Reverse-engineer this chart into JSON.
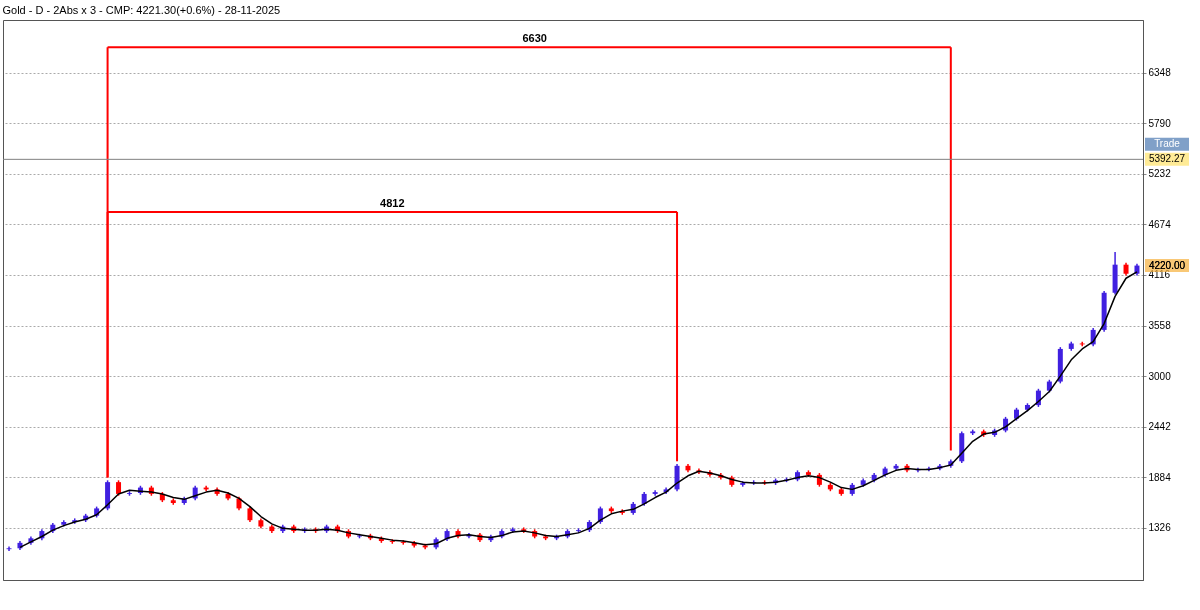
{
  "chart_data": {
    "type": "candlestick",
    "title": "Gold  - D - 2Abs x 3 - CMP: 4221.30(+0.6%) - 28-11-2025",
    "categories": [
      null,
      null,
      null,
      null,
      null,
      null,
      null,
      null,
      null,
      null,
      null,
      null,
      null,
      null,
      null,
      null,
      null,
      null,
      null,
      null,
      null,
      null,
      null,
      null,
      null,
      null,
      null,
      null,
      null,
      null,
      null,
      null,
      null,
      null,
      null,
      null,
      null,
      null,
      null,
      null,
      null,
      null,
      null,
      null,
      null,
      null,
      null,
      null,
      null,
      null,
      null,
      null,
      null,
      null,
      null,
      null,
      null,
      null,
      null,
      null,
      null,
      null,
      null,
      null,
      null,
      null,
      null,
      null,
      null,
      null,
      null,
      null,
      null,
      null,
      null,
      null,
      null,
      null,
      null,
      null,
      null,
      null,
      null,
      null,
      null,
      null,
      null,
      null,
      null,
      null,
      null,
      null,
      null,
      null,
      null,
      null,
      null,
      null,
      null,
      null,
      null,
      null,
      null,
      null
    ],
    "ohlc": [
      [
        1090,
        1120,
        1070,
        1100
      ],
      [
        1100,
        1180,
        1080,
        1160
      ],
      [
        1160,
        1230,
        1140,
        1210
      ],
      [
        1210,
        1310,
        1190,
        1290
      ],
      [
        1290,
        1380,
        1270,
        1360
      ],
      [
        1360,
        1410,
        1340,
        1390
      ],
      [
        1390,
        1430,
        1370,
        1410
      ],
      [
        1410,
        1480,
        1390,
        1460
      ],
      [
        1460,
        1560,
        1440,
        1540
      ],
      [
        1540,
        1850,
        1520,
        1830
      ],
      [
        1830,
        1850,
        1680,
        1700
      ],
      [
        1700,
        1730,
        1680,
        1710
      ],
      [
        1710,
        1790,
        1690,
        1770
      ],
      [
        1770,
        1790,
        1680,
        1700
      ],
      [
        1700,
        1720,
        1610,
        1630
      ],
      [
        1630,
        1650,
        1580,
        1600
      ],
      [
        1600,
        1670,
        1580,
        1650
      ],
      [
        1650,
        1790,
        1630,
        1770
      ],
      [
        1770,
        1790,
        1730,
        1750
      ],
      [
        1750,
        1770,
        1680,
        1700
      ],
      [
        1700,
        1720,
        1630,
        1650
      ],
      [
        1650,
        1670,
        1520,
        1540
      ],
      [
        1540,
        1560,
        1390,
        1410
      ],
      [
        1410,
        1430,
        1320,
        1340
      ],
      [
        1340,
        1360,
        1270,
        1290
      ],
      [
        1290,
        1360,
        1270,
        1340
      ],
      [
        1340,
        1360,
        1270,
        1290
      ],
      [
        1290,
        1330,
        1270,
        1310
      ],
      [
        1310,
        1330,
        1270,
        1290
      ],
      [
        1290,
        1360,
        1270,
        1340
      ],
      [
        1340,
        1360,
        1270,
        1290
      ],
      [
        1290,
        1310,
        1210,
        1230
      ],
      [
        1230,
        1260,
        1210,
        1240
      ],
      [
        1240,
        1260,
        1190,
        1210
      ],
      [
        1210,
        1230,
        1160,
        1180
      ],
      [
        1180,
        1200,
        1150,
        1170
      ],
      [
        1170,
        1190,
        1140,
        1160
      ],
      [
        1160,
        1180,
        1110,
        1130
      ],
      [
        1130,
        1150,
        1090,
        1110
      ],
      [
        1110,
        1220,
        1090,
        1200
      ],
      [
        1200,
        1310,
        1180,
        1290
      ],
      [
        1290,
        1310,
        1210,
        1230
      ],
      [
        1230,
        1270,
        1210,
        1250
      ],
      [
        1250,
        1270,
        1170,
        1190
      ],
      [
        1190,
        1250,
        1170,
        1230
      ],
      [
        1230,
        1310,
        1210,
        1290
      ],
      [
        1290,
        1330,
        1270,
        1310
      ],
      [
        1310,
        1330,
        1270,
        1290
      ],
      [
        1290,
        1310,
        1210,
        1230
      ],
      [
        1230,
        1250,
        1190,
        1210
      ],
      [
        1210,
        1250,
        1190,
        1230
      ],
      [
        1230,
        1310,
        1210,
        1290
      ],
      [
        1290,
        1320,
        1270,
        1300
      ],
      [
        1300,
        1410,
        1280,
        1390
      ],
      [
        1390,
        1560,
        1370,
        1540
      ],
      [
        1540,
        1560,
        1490,
        1510
      ],
      [
        1510,
        1530,
        1470,
        1490
      ],
      [
        1490,
        1610,
        1470,
        1590
      ],
      [
        1590,
        1720,
        1570,
        1700
      ],
      [
        1700,
        1740,
        1680,
        1720
      ],
      [
        1720,
        1770,
        1700,
        1750
      ],
      [
        1750,
        2030,
        1730,
        2010
      ],
      [
        2010,
        2030,
        1940,
        1960
      ],
      [
        1960,
        1980,
        1920,
        1940
      ],
      [
        1940,
        1960,
        1890,
        1910
      ],
      [
        1910,
        1930,
        1860,
        1880
      ],
      [
        1880,
        1900,
        1780,
        1800
      ],
      [
        1800,
        1840,
        1780,
        1820
      ],
      [
        1820,
        1850,
        1800,
        1830
      ],
      [
        1830,
        1850,
        1800,
        1820
      ],
      [
        1820,
        1870,
        1800,
        1850
      ],
      [
        1850,
        1880,
        1830,
        1860
      ],
      [
        1860,
        1960,
        1840,
        1940
      ],
      [
        1940,
        1960,
        1890,
        1910
      ],
      [
        1910,
        1930,
        1780,
        1800
      ],
      [
        1800,
        1820,
        1730,
        1750
      ],
      [
        1750,
        1770,
        1680,
        1700
      ],
      [
        1700,
        1820,
        1680,
        1800
      ],
      [
        1800,
        1870,
        1780,
        1850
      ],
      [
        1850,
        1930,
        1830,
        1910
      ],
      [
        1910,
        2000,
        1890,
        1980
      ],
      [
        1980,
        2030,
        1960,
        2010
      ],
      [
        2010,
        2030,
        1940,
        1960
      ],
      [
        1960,
        1990,
        1940,
        1970
      ],
      [
        1970,
        2000,
        1950,
        1980
      ],
      [
        1980,
        2030,
        1960,
        2010
      ],
      [
        2010,
        2080,
        1990,
        2060
      ],
      [
        2060,
        2390,
        2040,
        2370
      ],
      [
        2370,
        2410,
        2350,
        2390
      ],
      [
        2390,
        2410,
        2330,
        2350
      ],
      [
        2350,
        2420,
        2330,
        2400
      ],
      [
        2400,
        2550,
        2380,
        2530
      ],
      [
        2530,
        2650,
        2510,
        2630
      ],
      [
        2630,
        2700,
        2610,
        2680
      ],
      [
        2680,
        2860,
        2660,
        2840
      ],
      [
        2840,
        2960,
        2820,
        2940
      ],
      [
        2940,
        3320,
        2920,
        3300
      ],
      [
        3300,
        3380,
        3280,
        3360
      ],
      [
        3360,
        3380,
        3330,
        3350
      ],
      [
        3350,
        3530,
        3330,
        3510
      ],
      [
        3510,
        3940,
        3490,
        3920
      ],
      [
        3920,
        4370,
        3900,
        4230
      ],
      [
        4230,
        4250,
        4110,
        4130
      ],
      [
        4130,
        4240,
        4110,
        4220
      ]
    ],
    "colors": [
      "#4020e0",
      "#4020e0",
      "#4020e0",
      "#4020e0",
      "#4020e0",
      "#4020e0",
      "#4020e0",
      "#4020e0",
      "#4020e0",
      "#4020e0",
      "#ff0000",
      "#4020e0",
      "#4020e0",
      "#ff0000",
      "#ff0000",
      "#ff0000",
      "#4020e0",
      "#4020e0",
      "#ff0000",
      "#ff0000",
      "#ff0000",
      "#ff0000",
      "#ff0000",
      "#ff0000",
      "#ff0000",
      "#4020e0",
      "#ff0000",
      "#4020e0",
      "#ff0000",
      "#4020e0",
      "#ff0000",
      "#ff0000",
      "#4020e0",
      "#ff0000",
      "#ff0000",
      "#ff0000",
      "#ff0000",
      "#ff0000",
      "#ff0000",
      "#4020e0",
      "#4020e0",
      "#ff0000",
      "#4020e0",
      "#ff0000",
      "#4020e0",
      "#4020e0",
      "#4020e0",
      "#ff0000",
      "#ff0000",
      "#ff0000",
      "#4020e0",
      "#4020e0",
      "#4020e0",
      "#4020e0",
      "#4020e0",
      "#ff0000",
      "#ff0000",
      "#4020e0",
      "#4020e0",
      "#4020e0",
      "#4020e0",
      "#4020e0",
      "#ff0000",
      "#ff0000",
      "#ff0000",
      "#ff0000",
      "#ff0000",
      "#4020e0",
      "#4020e0",
      "#ff0000",
      "#4020e0",
      "#4020e0",
      "#4020e0",
      "#ff0000",
      "#ff0000",
      "#ff0000",
      "#ff0000",
      "#4020e0",
      "#4020e0",
      "#4020e0",
      "#4020e0",
      "#4020e0",
      "#ff0000",
      "#4020e0",
      "#4020e0",
      "#4020e0",
      "#4020e0",
      "#4020e0",
      "#4020e0",
      "#ff0000",
      "#4020e0",
      "#4020e0",
      "#4020e0",
      "#4020e0",
      "#4020e0",
      "#4020e0",
      "#4020e0",
      "#4020e0",
      "#ff0000",
      "#4020e0",
      "#4020e0",
      "#4020e0",
      "#ff0000",
      "#4020e0"
    ],
    "series": [
      {
        "type": "line",
        "color": "#000000",
        "values": [
          null,
          1110,
          1170,
          1230,
          1300,
          1350,
          1390,
          1420,
          1470,
          1580,
          1700,
          1740,
          1730,
          1720,
          1700,
          1660,
          1640,
          1680,
          1720,
          1740,
          1710,
          1650,
          1560,
          1450,
          1370,
          1320,
          1310,
          1300,
          1300,
          1310,
          1300,
          1270,
          1250,
          1230,
          1210,
          1190,
          1180,
          1160,
          1140,
          1150,
          1210,
          1240,
          1250,
          1230,
          1220,
          1240,
          1280,
          1290,
          1270,
          1240,
          1230,
          1250,
          1270,
          1320,
          1410,
          1480,
          1510,
          1530,
          1590,
          1660,
          1720,
          1820,
          1900,
          1950,
          1930,
          1900,
          1860,
          1830,
          1820,
          1820,
          1830,
          1850,
          1880,
          1900,
          1880,
          1830,
          1770,
          1750,
          1790,
          1850,
          1910,
          1960,
          1980,
          1970,
          1970,
          1990,
          2020,
          2150,
          2280,
          2360,
          2380,
          2440,
          2530,
          2620,
          2720,
          2830,
          3000,
          3180,
          3300,
          3380,
          3580,
          3880,
          4080,
          4150
        ]
      },
      {
        "type": "line",
        "name": "4812",
        "color": "#ff0000",
        "errors": [
          null,
          null,
          null,
          null,
          null,
          null,
          null,
          null,
          null,
          [
            1880,
            4812
          ],
          null,
          null,
          null,
          null,
          null,
          null,
          null,
          null,
          null,
          null,
          null,
          null,
          null,
          null,
          null,
          null,
          null,
          null,
          null,
          null,
          null,
          null,
          null,
          null,
          null,
          null,
          null,
          null,
          null,
          null,
          null,
          null,
          null,
          null,
          null,
          null,
          null,
          null,
          null,
          null,
          null,
          null,
          null,
          null,
          null,
          null,
          null,
          null,
          null,
          null,
          null,
          [
            2060,
            4812
          ],
          null,
          null,
          null,
          null,
          null,
          null,
          null,
          null,
          null,
          null,
          null,
          null,
          null,
          null,
          null,
          null,
          null,
          null,
          null,
          null,
          null,
          null,
          null,
          null,
          null,
          null,
          null,
          null,
          null,
          null,
          null,
          null,
          null,
          null,
          null,
          null,
          null,
          null,
          null,
          null,
          null,
          null
        ],
        "values": [
          null,
          null,
          null,
          null,
          null,
          null,
          null,
          null,
          null,
          4812,
          4812,
          4812,
          4812,
          4812,
          4812,
          4812,
          4812,
          4812,
          4812,
          4812,
          4812,
          4812,
          4812,
          4812,
          4812,
          4812,
          4812,
          4812,
          4812,
          4812,
          4812,
          4812,
          4812,
          4812,
          4812,
          4812,
          4812,
          4812,
          4812,
          4812,
          4812,
          4812,
          4812,
          4812,
          4812,
          4812,
          4812,
          4812,
          4812,
          4812,
          4812,
          4812,
          4812,
          4812,
          4812,
          4812,
          4812,
          4812,
          4812,
          4812,
          4812,
          4812,
          null,
          null,
          null,
          null,
          null,
          null,
          null,
          null,
          null,
          null,
          null,
          null,
          null,
          null,
          null,
          null,
          null,
          null,
          null,
          null,
          null,
          null,
          null,
          null,
          null,
          null,
          null,
          null,
          null,
          null,
          null,
          null,
          null,
          null,
          null,
          null,
          null,
          null,
          null,
          null,
          null,
          null
        ]
      },
      {
        "type": "line",
        "name": "6630",
        "color": "#ff0000",
        "errors": [
          null,
          null,
          null,
          null,
          null,
          null,
          null,
          null,
          null,
          [
            1880,
            6630
          ],
          null,
          null,
          null,
          null,
          null,
          null,
          null,
          null,
          null,
          null,
          null,
          null,
          null,
          null,
          null,
          null,
          null,
          null,
          null,
          null,
          null,
          null,
          null,
          null,
          null,
          null,
          null,
          null,
          null,
          null,
          null,
          null,
          null,
          null,
          null,
          null,
          null,
          null,
          null,
          null,
          null,
          null,
          null,
          null,
          null,
          null,
          null,
          null,
          null,
          null,
          null,
          null,
          null,
          null,
          null,
          null,
          null,
          null,
          null,
          null,
          null,
          null,
          null,
          null,
          null,
          null,
          null,
          null,
          null,
          null,
          null,
          null,
          null,
          null,
          null,
          null,
          [
            2180,
            6630
          ],
          null,
          null,
          null,
          null,
          null,
          null,
          null,
          null,
          null,
          null,
          null,
          null,
          null,
          null,
          null,
          null,
          null
        ],
        "values": [
          null,
          null,
          null,
          null,
          null,
          null,
          null,
          null,
          null,
          6630,
          6630,
          6630,
          6630,
          6630,
          6630,
          6630,
          6630,
          6630,
          6630,
          6630,
          6630,
          6630,
          6630,
          6630,
          6630,
          6630,
          6630,
          6630,
          6630,
          6630,
          6630,
          6630,
          6630,
          6630,
          6630,
          6630,
          6630,
          6630,
          6630,
          6630,
          6630,
          6630,
          6630,
          6630,
          6630,
          6630,
          6630,
          6630,
          6630,
          6630,
          6630,
          6630,
          6630,
          6630,
          6630,
          6630,
          6630,
          6630,
          6630,
          6630,
          6630,
          6630,
          6630,
          6630,
          6630,
          6630,
          6630,
          6630,
          6630,
          6630,
          6630,
          6630,
          6630,
          6630,
          6630,
          6630,
          6630,
          6630,
          6630,
          6630,
          6630,
          6630,
          6630,
          6630,
          6630,
          6630,
          6630,
          null,
          null,
          null,
          null,
          null,
          null,
          null,
          null,
          null,
          null,
          null,
          null,
          null,
          null,
          null,
          null,
          null
        ]
      }
    ],
    "ylim": [
      750,
      6930
    ],
    "yticks": [
      1326,
      1884,
      2442,
      3000,
      3558,
      4116,
      4674,
      5232,
      5790,
      6348
    ],
    "grid": "y",
    "tick_labels": "y",
    "ref_lines": [
      {
        "axis": "y",
        "value": 5392.27,
        "label": "5392.27",
        "color": "#808080"
      }
    ],
    "annotations": [
      "Trade",
      "4220.00"
    ]
  }
}
